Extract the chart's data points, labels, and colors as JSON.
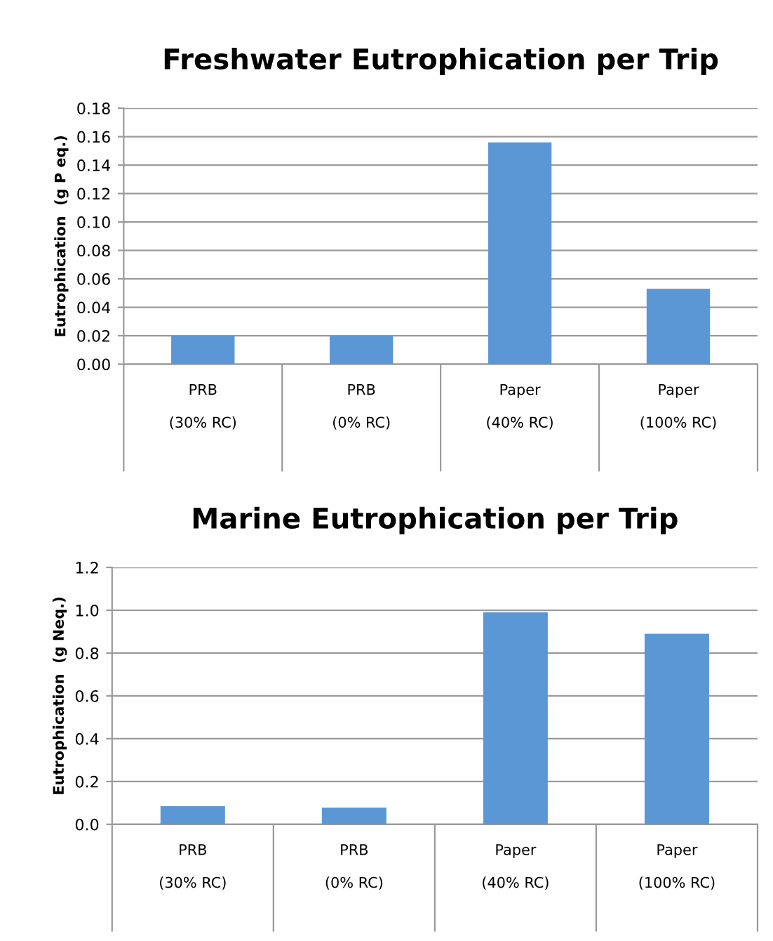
{
  "chart_data": [
    {
      "type": "bar",
      "title": "Freshwater Eutrophication per Trip",
      "ylabel": "Eutrophication  (g P eq.)",
      "categories": [
        "PRB\n\n(30% RC)",
        "PRB\n\n(0% RC)",
        "Paper\n\n(40% RC)",
        "Paper\n\n(100% RC)"
      ],
      "values": [
        0.02,
        0.02,
        0.156,
        0.053
      ],
      "color": "#5b97d5",
      "ylim": [
        0,
        0.18
      ],
      "yticks": [
        {
          "value": 0,
          "label": "0.00"
        },
        {
          "value": 0.02,
          "label": "0.02"
        },
        {
          "value": 0.04,
          "label": "0.04"
        },
        {
          "value": 0.06,
          "label": "0.06"
        },
        {
          "value": 0.08,
          "label": "0.08"
        },
        {
          "value": 0.1,
          "label": "0.10"
        },
        {
          "value": 0.12,
          "label": "0.12"
        },
        {
          "value": 0.14,
          "label": "0.14"
        },
        {
          "value": 0.16,
          "label": "0.16"
        },
        {
          "value": 0.18,
          "label": "0.18"
        }
      ],
      "grid": "y"
    },
    {
      "type": "bar",
      "title": "Marine Eutrophication per Trip",
      "ylabel": "Eutrophication  (g Neq.)",
      "categories": [
        "PRB\n\n(30% RC)",
        "PRB\n\n(0% RC)",
        "Paper\n\n(40% RC)",
        "Paper\n\n(100% RC)"
      ],
      "values": [
        0.085,
        0.078,
        0.99,
        0.89
      ],
      "color": "#5b97d5",
      "ylim": [
        0,
        1.2
      ],
      "yticks": [
        {
          "value": 0,
          "label": "0.0"
        },
        {
          "value": 0.2,
          "label": "0.2"
        },
        {
          "value": 0.4,
          "label": "0.4"
        },
        {
          "value": 0.6,
          "label": "0.6"
        },
        {
          "value": 0.8,
          "label": "0.8"
        },
        {
          "value": 1.0,
          "label": "1.0"
        },
        {
          "value": 1.2,
          "label": "1.2"
        }
      ],
      "grid": "y"
    }
  ]
}
